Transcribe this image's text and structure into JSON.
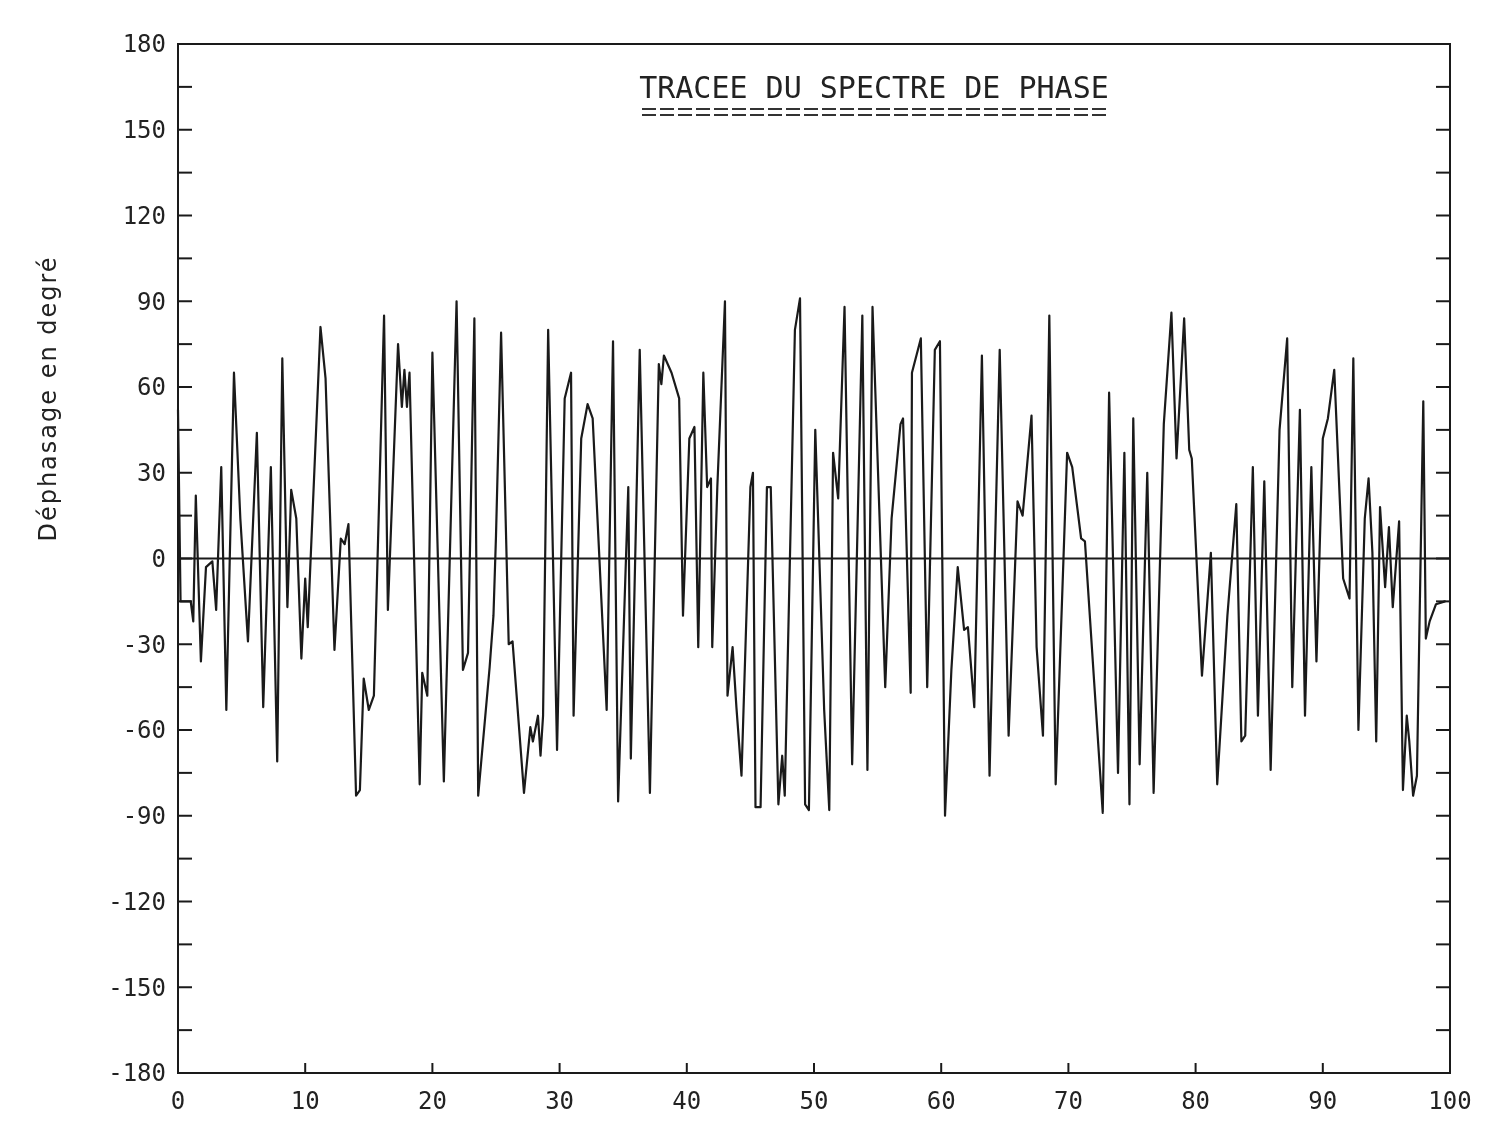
{
  "chart_data": {
    "type": "line",
    "title": "TRACEE DU SPECTRE DE PHASE",
    "ylabel": "Déphasage en degré",
    "xlim": [
      0,
      100
    ],
    "xticks": [
      0,
      10,
      20,
      30,
      40,
      50,
      60,
      70,
      80,
      90,
      100
    ],
    "ylim": [
      -180,
      180
    ],
    "yticks": [
      -180,
      {
        "value": -165,
        "label": null
      },
      -150,
      {
        "value": -135,
        "label": null
      },
      -120,
      {
        "value": -105,
        "label": null
      },
      -90,
      {
        "value": -75,
        "label": null
      },
      -60,
      {
        "value": -45,
        "label": null
      },
      -30,
      {
        "value": -15,
        "label": null
      },
      0,
      {
        "value": 15,
        "label": null
      },
      30,
      {
        "value": 45,
        "label": null
      },
      60,
      {
        "value": 75,
        "label": null
      },
      90,
      {
        "value": 105,
        "label": null
      },
      120,
      {
        "value": 135,
        "label": null
      },
      150,
      {
        "value": 165,
        "label": null
      },
      180
    ],
    "grid": false,
    "marker": "none",
    "line_style": "solid",
    "ref_lines": [
      {
        "axis": "y",
        "value": 0,
        "label": null,
        "color": "#1a1a1a"
      }
    ],
    "series": [
      {
        "color": "#1a1a1a",
        "x": [
          0,
          0.2,
          1.0,
          1.2,
          1.4,
          1.8,
          2.2,
          2.7,
          3.0,
          3.4,
          3.8,
          4.4,
          4.9,
          5.5,
          6.2,
          6.7,
          7.3,
          7.8,
          8.2,
          8.6,
          8.9,
          9.3,
          9.7,
          10.0,
          10.2,
          11.2,
          11.6,
          12.3,
          12.8,
          13.1,
          13.4,
          14.0,
          14.3,
          14.6,
          15.0,
          15.4,
          16.2,
          16.5,
          17.3,
          17.6,
          17.8,
          18.0,
          18.2,
          19.0,
          19.2,
          19.6,
          20.0,
          20.9,
          21.9,
          22.4,
          22.8,
          23.3,
          23.6,
          24.5,
          24.8,
          25.0,
          25.4,
          26.0,
          26.3,
          27.2,
          27.7,
          27.9,
          28.3,
          28.5,
          28.7,
          29.1,
          29.8,
          30.4,
          30.9,
          31.1,
          31.7,
          32.2,
          32.6,
          33.7,
          34.2,
          34.6,
          35.4,
          35.6,
          36.3,
          37.1,
          37.8,
          38.0,
          38.2,
          38.8,
          39.4,
          39.7,
          40.2,
          40.6,
          40.9,
          41.3,
          41.6,
          41.9,
          42.0,
          42.4,
          43.0,
          43.2,
          43.6,
          43.9,
          44.3,
          45.0,
          45.2,
          45.4,
          45.8,
          46.3,
          46.6,
          47.2,
          47.5,
          47.7,
          48.5,
          48.9,
          49.3,
          49.6,
          50.1,
          50.8,
          51.2,
          51.5,
          51.9,
          52.4,
          53.0,
          53.8,
          54.2,
          54.6,
          55.6,
          56.1,
          56.8,
          57.0,
          57.6,
          57.7,
          58.4,
          58.9,
          59.5,
          59.9,
          60.3,
          60.8,
          61.3,
          61.8,
          62.1,
          62.6,
          63.2,
          63.8,
          64.6,
          65.3,
          66.0,
          66.4,
          67.1,
          67.5,
          68.0,
          68.5,
          69.0,
          69.9,
          70.3,
          71.0,
          71.3,
          72.7,
          73.2,
          73.9,
          74.4,
          74.8,
          75.1,
          75.6,
          76.2,
          76.7,
          77.5,
          78.1,
          78.5,
          79.1,
          79.5,
          79.7,
          80.5,
          81.2,
          81.7,
          82.5,
          83.2,
          83.6,
          83.9,
          84.5,
          84.9,
          85.4,
          85.9,
          86.6,
          87.2,
          87.6,
          88.2,
          88.6,
          89.1,
          89.5,
          90.0,
          90.4,
          90.9,
          91.6,
          92.1,
          92.4,
          92.8,
          93.3,
          93.6,
          93.9,
          94.2,
          94.5,
          94.9,
          95.2,
          95.5,
          96.0,
          96.3,
          96.6,
          96.8,
          97.1,
          97.4,
          97.9,
          98.1,
          98.4,
          98.9,
          99.6
        ],
        "values": [
          52,
          -15,
          -15,
          -22,
          22,
          -36,
          -3,
          -1,
          -18,
          32,
          -53,
          65,
          14,
          -29,
          44,
          -52,
          32,
          -71,
          70,
          -17,
          24,
          14,
          -35,
          -7,
          -24,
          81,
          63,
          -32,
          7,
          5,
          12,
          -83,
          -81,
          -42,
          -53,
          -48,
          85,
          -18,
          75,
          53,
          66,
          53,
          65,
          -79,
          -40,
          -48,
          72,
          -78,
          90,
          -39,
          -33,
          84,
          -83,
          -38,
          -20,
          8,
          79,
          -30,
          -29,
          -82,
          -59,
          -64,
          -55,
          -69,
          -55,
          80,
          -67,
          56,
          65,
          -55,
          42,
          54,
          49,
          -53,
          76,
          -85,
          25,
          -70,
          73,
          -82,
          68,
          61,
          71,
          65,
          56,
          -20,
          42,
          46,
          -31,
          65,
          25,
          28,
          -31,
          25,
          90,
          -48,
          -31,
          -52,
          -76,
          25,
          30,
          -87,
          -87,
          25,
          25,
          -86,
          -69,
          -83,
          80,
          91,
          -86,
          -88,
          45,
          -53,
          -88,
          37,
          21,
          88,
          -72,
          85,
          -74,
          88,
          -45,
          14,
          47,
          49,
          -47,
          65,
          77,
          -45,
          73,
          76,
          -90,
          -39,
          -3,
          -25,
          -24,
          -52,
          71,
          -76,
          73,
          -62,
          20,
          15,
          50,
          -31,
          -62,
          85,
          -79,
          37,
          32,
          7,
          6,
          -89,
          58,
          -75,
          37,
          -86,
          49,
          -72,
          30,
          -82,
          47,
          86,
          35,
          84,
          38,
          35,
          -41,
          2,
          -79,
          -20,
          19,
          -64,
          -62,
          32,
          -55,
          27,
          -74,
          45,
          77,
          -45,
          52,
          -55,
          32,
          -36,
          42,
          49,
          66,
          -7,
          -14,
          70,
          -60,
          14,
          28,
          2,
          -64,
          18,
          -10,
          11,
          -17,
          13,
          -81,
          -55,
          -64,
          -83,
          -76,
          55,
          -28,
          -22,
          -16,
          -15
        ]
      }
    ]
  }
}
